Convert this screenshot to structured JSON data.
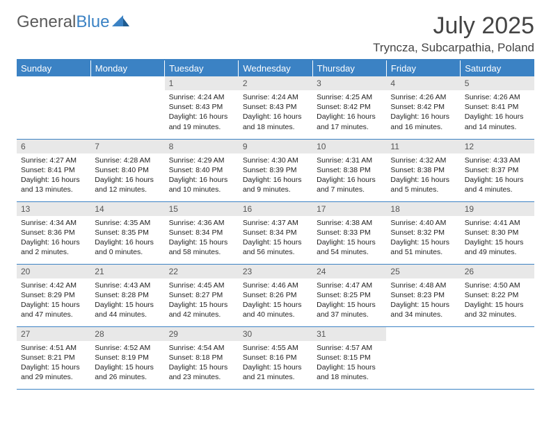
{
  "logo": {
    "word1": "General",
    "word2": "Blue"
  },
  "title": "July 2025",
  "location": "Tryncza, Subcarpathia, Poland",
  "colors": {
    "header_bg": "#3b82c4",
    "header_text": "#ffffff",
    "daynum_bg": "#e8e8e8",
    "border": "#3b82c4",
    "text": "#222222",
    "logo_gray": "#5a5a5a",
    "logo_blue": "#3b82c4"
  },
  "weekdays": [
    "Sunday",
    "Monday",
    "Tuesday",
    "Wednesday",
    "Thursday",
    "Friday",
    "Saturday"
  ],
  "weeks": [
    [
      {
        "day": "",
        "lines": []
      },
      {
        "day": "",
        "lines": []
      },
      {
        "day": "1",
        "lines": [
          "Sunrise: 4:24 AM",
          "Sunset: 8:43 PM",
          "Daylight: 16 hours",
          "and 19 minutes."
        ]
      },
      {
        "day": "2",
        "lines": [
          "Sunrise: 4:24 AM",
          "Sunset: 8:43 PM",
          "Daylight: 16 hours",
          "and 18 minutes."
        ]
      },
      {
        "day": "3",
        "lines": [
          "Sunrise: 4:25 AM",
          "Sunset: 8:42 PM",
          "Daylight: 16 hours",
          "and 17 minutes."
        ]
      },
      {
        "day": "4",
        "lines": [
          "Sunrise: 4:26 AM",
          "Sunset: 8:42 PM",
          "Daylight: 16 hours",
          "and 16 minutes."
        ]
      },
      {
        "day": "5",
        "lines": [
          "Sunrise: 4:26 AM",
          "Sunset: 8:41 PM",
          "Daylight: 16 hours",
          "and 14 minutes."
        ]
      }
    ],
    [
      {
        "day": "6",
        "lines": [
          "Sunrise: 4:27 AM",
          "Sunset: 8:41 PM",
          "Daylight: 16 hours",
          "and 13 minutes."
        ]
      },
      {
        "day": "7",
        "lines": [
          "Sunrise: 4:28 AM",
          "Sunset: 8:40 PM",
          "Daylight: 16 hours",
          "and 12 minutes."
        ]
      },
      {
        "day": "8",
        "lines": [
          "Sunrise: 4:29 AM",
          "Sunset: 8:40 PM",
          "Daylight: 16 hours",
          "and 10 minutes."
        ]
      },
      {
        "day": "9",
        "lines": [
          "Sunrise: 4:30 AM",
          "Sunset: 8:39 PM",
          "Daylight: 16 hours",
          "and 9 minutes."
        ]
      },
      {
        "day": "10",
        "lines": [
          "Sunrise: 4:31 AM",
          "Sunset: 8:38 PM",
          "Daylight: 16 hours",
          "and 7 minutes."
        ]
      },
      {
        "day": "11",
        "lines": [
          "Sunrise: 4:32 AM",
          "Sunset: 8:38 PM",
          "Daylight: 16 hours",
          "and 5 minutes."
        ]
      },
      {
        "day": "12",
        "lines": [
          "Sunrise: 4:33 AM",
          "Sunset: 8:37 PM",
          "Daylight: 16 hours",
          "and 4 minutes."
        ]
      }
    ],
    [
      {
        "day": "13",
        "lines": [
          "Sunrise: 4:34 AM",
          "Sunset: 8:36 PM",
          "Daylight: 16 hours",
          "and 2 minutes."
        ]
      },
      {
        "day": "14",
        "lines": [
          "Sunrise: 4:35 AM",
          "Sunset: 8:35 PM",
          "Daylight: 16 hours",
          "and 0 minutes."
        ]
      },
      {
        "day": "15",
        "lines": [
          "Sunrise: 4:36 AM",
          "Sunset: 8:34 PM",
          "Daylight: 15 hours",
          "and 58 minutes."
        ]
      },
      {
        "day": "16",
        "lines": [
          "Sunrise: 4:37 AM",
          "Sunset: 8:34 PM",
          "Daylight: 15 hours",
          "and 56 minutes."
        ]
      },
      {
        "day": "17",
        "lines": [
          "Sunrise: 4:38 AM",
          "Sunset: 8:33 PM",
          "Daylight: 15 hours",
          "and 54 minutes."
        ]
      },
      {
        "day": "18",
        "lines": [
          "Sunrise: 4:40 AM",
          "Sunset: 8:32 PM",
          "Daylight: 15 hours",
          "and 51 minutes."
        ]
      },
      {
        "day": "19",
        "lines": [
          "Sunrise: 4:41 AM",
          "Sunset: 8:30 PM",
          "Daylight: 15 hours",
          "and 49 minutes."
        ]
      }
    ],
    [
      {
        "day": "20",
        "lines": [
          "Sunrise: 4:42 AM",
          "Sunset: 8:29 PM",
          "Daylight: 15 hours",
          "and 47 minutes."
        ]
      },
      {
        "day": "21",
        "lines": [
          "Sunrise: 4:43 AM",
          "Sunset: 8:28 PM",
          "Daylight: 15 hours",
          "and 44 minutes."
        ]
      },
      {
        "day": "22",
        "lines": [
          "Sunrise: 4:45 AM",
          "Sunset: 8:27 PM",
          "Daylight: 15 hours",
          "and 42 minutes."
        ]
      },
      {
        "day": "23",
        "lines": [
          "Sunrise: 4:46 AM",
          "Sunset: 8:26 PM",
          "Daylight: 15 hours",
          "and 40 minutes."
        ]
      },
      {
        "day": "24",
        "lines": [
          "Sunrise: 4:47 AM",
          "Sunset: 8:25 PM",
          "Daylight: 15 hours",
          "and 37 minutes."
        ]
      },
      {
        "day": "25",
        "lines": [
          "Sunrise: 4:48 AM",
          "Sunset: 8:23 PM",
          "Daylight: 15 hours",
          "and 34 minutes."
        ]
      },
      {
        "day": "26",
        "lines": [
          "Sunrise: 4:50 AM",
          "Sunset: 8:22 PM",
          "Daylight: 15 hours",
          "and 32 minutes."
        ]
      }
    ],
    [
      {
        "day": "27",
        "lines": [
          "Sunrise: 4:51 AM",
          "Sunset: 8:21 PM",
          "Daylight: 15 hours",
          "and 29 minutes."
        ]
      },
      {
        "day": "28",
        "lines": [
          "Sunrise: 4:52 AM",
          "Sunset: 8:19 PM",
          "Daylight: 15 hours",
          "and 26 minutes."
        ]
      },
      {
        "day": "29",
        "lines": [
          "Sunrise: 4:54 AM",
          "Sunset: 8:18 PM",
          "Daylight: 15 hours",
          "and 23 minutes."
        ]
      },
      {
        "day": "30",
        "lines": [
          "Sunrise: 4:55 AM",
          "Sunset: 8:16 PM",
          "Daylight: 15 hours",
          "and 21 minutes."
        ]
      },
      {
        "day": "31",
        "lines": [
          "Sunrise: 4:57 AM",
          "Sunset: 8:15 PM",
          "Daylight: 15 hours",
          "and 18 minutes."
        ]
      },
      {
        "day": "",
        "lines": []
      },
      {
        "day": "",
        "lines": []
      }
    ]
  ]
}
